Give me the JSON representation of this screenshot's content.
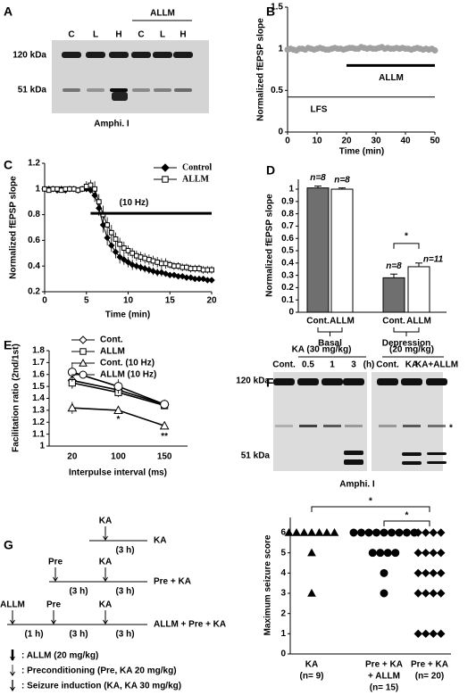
{
  "panel_labels": [
    "A",
    "B",
    "C",
    "D",
    "E",
    "F",
    "G"
  ],
  "blot_a": {
    "group_label": "ALLM",
    "lanes": [
      "C",
      "L",
      "H",
      "C",
      "L",
      "H"
    ],
    "markers": [
      "120 kDa",
      "51 kDa"
    ],
    "caption": "Amphi. I"
  },
  "blot_f": {
    "groups": [
      {
        "label": "KA (30 mg/kg)",
        "lanes": [
          "Cont.",
          "0.5",
          "1",
          "3",
          "(h)"
        ]
      },
      {
        "label": "(20 mg/kg)",
        "lanes": [
          "Cont.",
          "KA",
          "KA+ALLM"
        ]
      }
    ],
    "markers": [
      "120 kDa",
      "51 kDa"
    ],
    "star": "*",
    "caption": "Amphi. I"
  },
  "protocol_g": {
    "rows": [
      {
        "events": [
          "KA"
        ],
        "durations": [
          "(3 h)"
        ],
        "name": "KA"
      },
      {
        "events": [
          "Pre",
          "KA"
        ],
        "durations": [
          "(3 h)",
          "(3 h)"
        ],
        "name": "Pre + KA"
      },
      {
        "events": [
          "ALLM",
          "Pre",
          "KA"
        ],
        "durations": [
          "(1 h)",
          "(3 h)",
          "(3 h)"
        ],
        "name": "ALLM + Pre + KA"
      }
    ],
    "legend": [
      ": ALLM (20 mg/kg)",
      ": Preconditioning (Pre, KA 20 mg/kg)",
      ": Seizure induction (KA, KA 30 mg/kg)"
    ]
  },
  "chart_data": [
    {
      "type": "line",
      "x_label": "Time (min)",
      "y_label": "Normalized fEPSP slope",
      "x": [
        0,
        1,
        2,
        3,
        4,
        5,
        6,
        7,
        8,
        9,
        10,
        11,
        12,
        13,
        14,
        15,
        16,
        17,
        18,
        19,
        20,
        21,
        22,
        23,
        24,
        25,
        26,
        27,
        28,
        29,
        30,
        31,
        32,
        33,
        34,
        35,
        36,
        37,
        38,
        39,
        40,
        41,
        42,
        43,
        44,
        45,
        46,
        47,
        48,
        49,
        50
      ],
      "series": [
        {
          "color": "#a0a0a0",
          "marker": "circle",
          "values": [
            0.99,
            1.0,
            0.99,
            0.98,
            1.0,
            1.0,
            0.99,
            1.01,
            1.0,
            0.99,
            1.0,
            1.01,
            1.0,
            0.99,
            0.99,
            1.0,
            1.01,
            1.0,
            1.0,
            0.99,
            1.0,
            1.01,
            1.01,
            1.0,
            1.0,
            1.02,
            1.01,
            1.0,
            1.01,
            1.0,
            1.0,
            1.01,
            1.02,
            1.0,
            1.01,
            1.0,
            1.0,
            1.01,
            1.0,
            1.01,
            1.0,
            1.0,
            0.99,
            1.0,
            1.01,
            1.0,
            0.99,
            1.0,
            0.99,
            1.0,
            0.98
          ]
        }
      ],
      "xlim": [
        0,
        50
      ],
      "xticks": [
        0,
        10,
        20,
        30,
        40,
        50
      ],
      "ylim": [
        0,
        1.5
      ],
      "yticks": [
        0,
        0.5,
        1,
        1.5
      ],
      "annotations": [
        {
          "text": "ALLM",
          "x0": 20,
          "x1": 50,
          "y": 0.8
        },
        {
          "text": "LFS",
          "x0": 0,
          "x1": 50,
          "y": 0.42
        }
      ]
    },
    {
      "type": "line",
      "x_label": "Time (min)",
      "y_label": "Normalized fEPSP slope",
      "x": [
        0,
        0.5,
        1,
        1.5,
        2,
        2.5,
        3,
        3.5,
        4,
        4.5,
        5,
        5.5,
        6,
        6.5,
        7,
        7.5,
        8,
        8.5,
        9,
        9.5,
        10,
        10.5,
        11,
        11.5,
        12,
        12.5,
        13,
        13.5,
        14,
        14.5,
        15,
        15.5,
        16,
        16.5,
        17,
        17.5,
        18,
        18.5,
        19,
        19.5,
        20
      ],
      "series": [
        {
          "name": "Control",
          "color": "#000000",
          "marker": "diamond",
          "fill": "#000000",
          "values": [
            1.0,
            1.0,
            1.0,
            0.99,
            1.0,
            0.99,
            1.0,
            1.0,
            0.99,
            1.0,
            1.0,
            0.99,
            0.95,
            0.85,
            0.72,
            0.62,
            0.56,
            0.51,
            0.47,
            0.45,
            0.43,
            0.41,
            0.4,
            0.39,
            0.38,
            0.37,
            0.36,
            0.35,
            0.35,
            0.34,
            0.33,
            0.33,
            0.32,
            0.32,
            0.31,
            0.31,
            0.3,
            0.3,
            0.3,
            0.29,
            0.29
          ],
          "errors": [
            0.02,
            0.02,
            0.02,
            0.02,
            0.02,
            0.02,
            0.02,
            0.02,
            0.02,
            0.02,
            0.02,
            0.02,
            0.05,
            0.06,
            0.06,
            0.06,
            0.05,
            0.05,
            0.05,
            0.04,
            0.04,
            0.04,
            0.03,
            0.03,
            0.03,
            0.03,
            0.03,
            0.03,
            0.03,
            0.02,
            0.02,
            0.02,
            0.02,
            0.02,
            0.02,
            0.02,
            0.02,
            0.02,
            0.02,
            0.02,
            0.02
          ]
        },
        {
          "name": "ALLM",
          "color": "#000000",
          "marker": "square",
          "fill": "#ffffff",
          "values": [
            1.0,
            0.99,
            1.0,
            1.0,
            0.99,
            1.0,
            1.0,
            1.0,
            0.99,
            1.0,
            1.02,
            1.03,
            1.0,
            0.9,
            0.8,
            0.72,
            0.66,
            0.61,
            0.57,
            0.54,
            0.52,
            0.5,
            0.48,
            0.47,
            0.46,
            0.45,
            0.44,
            0.43,
            0.42,
            0.42,
            0.41,
            0.4,
            0.4,
            0.39,
            0.39,
            0.38,
            0.38,
            0.38,
            0.37,
            0.37,
            0.37
          ],
          "errors": [
            0.02,
            0.02,
            0.02,
            0.02,
            0.02,
            0.02,
            0.02,
            0.02,
            0.02,
            0.02,
            0.04,
            0.04,
            0.06,
            0.06,
            0.07,
            0.06,
            0.06,
            0.05,
            0.05,
            0.05,
            0.04,
            0.04,
            0.04,
            0.04,
            0.04,
            0.04,
            0.04,
            0.04,
            0.04,
            0.04,
            0.03,
            0.03,
            0.03,
            0.03,
            0.03,
            0.03,
            0.03,
            0.03,
            0.03,
            0.03,
            0.03
          ]
        }
      ],
      "xlim": [
        0,
        20
      ],
      "xticks": [
        0,
        5,
        10,
        15,
        20
      ],
      "ylim": [
        0.2,
        1.2
      ],
      "yticks": [
        0.2,
        0.4,
        0.6,
        0.8,
        1,
        1.2
      ],
      "legend": "top-right",
      "annotations": [
        {
          "text": "(10 Hz)",
          "x0": 5.5,
          "x1": 20,
          "y": 0.81
        }
      ]
    },
    {
      "type": "bar",
      "y_label": "Normalized fEPSP slope",
      "categories": [
        "Cont.",
        "ALLM",
        "Cont.",
        "ALLM"
      ],
      "groups": [
        "Basal",
        "Depression"
      ],
      "values": [
        1.01,
        1.0,
        0.28,
        0.37
      ],
      "errors": [
        0.015,
        0.01,
        0.03,
        0.03
      ],
      "n_labels": [
        "n=8",
        "n=8",
        "n=8",
        "n=11"
      ],
      "colors": [
        "#6f6f6f",
        "#ffffff",
        "#6f6f6f",
        "#ffffff"
      ],
      "ylim": [
        0,
        1.08
      ],
      "yticks": [
        0,
        0.1,
        0.2,
        0.3,
        0.4,
        0.5,
        0.6,
        0.7,
        0.8,
        0.9,
        1
      ],
      "annotations": [
        {
          "text": "*",
          "from": 2,
          "to": 3
        }
      ]
    },
    {
      "type": "line",
      "x_label": "Interpulse interval (ms)",
      "y_label": "Facilitation ratio (2nd/1st)",
      "categories": [
        "20",
        "100",
        "150"
      ],
      "series": [
        {
          "name": "Cont.",
          "color": "#000000",
          "marker": "diamond",
          "fill": "#ffffff",
          "values": [
            1.55,
            1.47,
            1.35
          ],
          "errors": [
            0.06,
            0.04,
            0.03
          ]
        },
        {
          "name": "ALLM",
          "color": "#000000",
          "marker": "square",
          "fill": "#ffffff",
          "values": [
            1.53,
            1.45,
            1.34
          ],
          "errors": [
            0.05,
            0.04,
            0.03
          ]
        },
        {
          "name": "Cont. (10 Hz)",
          "color": "#000000",
          "marker": "triangle",
          "fill": "#ffffff",
          "values": [
            1.32,
            1.3,
            1.17
          ],
          "errors": [
            0.05,
            0.02,
            0.03
          ]
        },
        {
          "name": "ALLM (10 Hz)",
          "color": "#000000",
          "marker": "circle",
          "fill": "#ffffff",
          "values": [
            1.62,
            1.5,
            1.35
          ],
          "errors": [
            0.08,
            0.06,
            0.04
          ]
        }
      ],
      "ylim": [
        1,
        1.8
      ],
      "yticks": [
        1,
        1.1,
        1.2,
        1.3,
        1.4,
        1.5,
        1.6,
        1.7,
        1.8
      ],
      "legend": "top-left",
      "annotations": [
        {
          "text": "*",
          "series": 2,
          "category": 1
        },
        {
          "text": "**",
          "series": 2,
          "category": 2
        }
      ]
    },
    {
      "type": "strip",
      "y_label": "Maximum seizure score",
      "groups": [
        {
          "label": [
            "KA",
            "(n= 9)"
          ],
          "marker": "triangle",
          "values": [
            6,
            6,
            6,
            6,
            6,
            6,
            6,
            5,
            3
          ]
        },
        {
          "label": [
            "Pre + KA",
            "+ ALLM",
            "(n= 15)"
          ],
          "marker": "circle",
          "values": [
            6,
            6,
            6,
            6,
            6,
            6,
            6,
            6,
            6,
            5,
            5,
            5,
            5,
            4,
            3
          ]
        },
        {
          "label": [
            "Pre + KA",
            "(n= 20)"
          ],
          "marker": "diamond",
          "values": [
            6,
            6,
            6,
            6,
            5,
            5,
            5,
            5,
            4,
            4,
            4,
            4,
            3,
            3,
            3,
            3,
            1,
            1,
            1,
            1
          ]
        }
      ],
      "color": "#000000",
      "ylim": [
        0,
        6.75
      ],
      "yticks": [
        0,
        1,
        2,
        3,
        4,
        5,
        6
      ],
      "annotations": [
        {
          "text": "*",
          "from": 0,
          "to": 2
        },
        {
          "text": "*",
          "from": 1,
          "to": 2
        }
      ]
    }
  ]
}
